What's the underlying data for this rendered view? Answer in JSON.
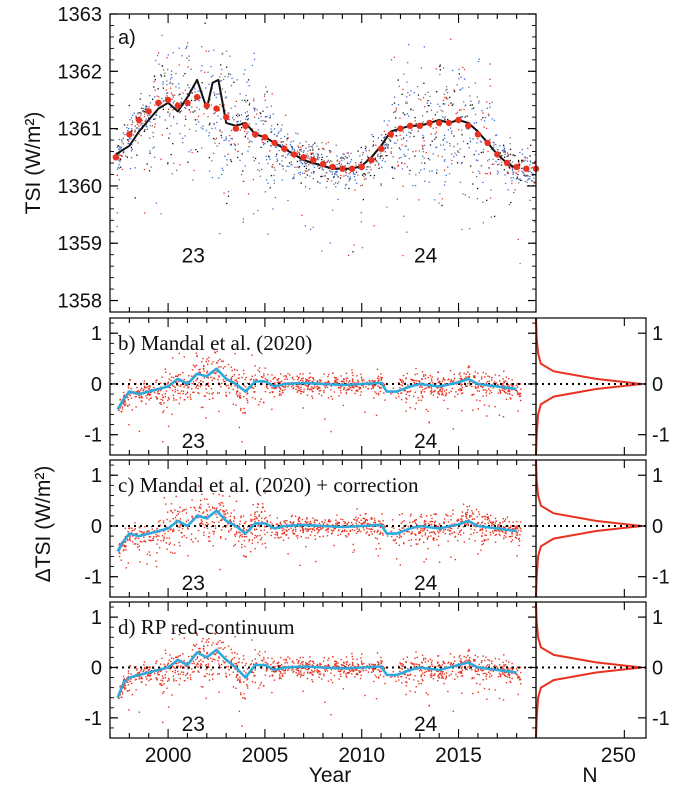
{
  "figure": {
    "xlabel": "Year",
    "hist_xlabel": "N",
    "xticks": [
      2000,
      2005,
      2010,
      2015
    ],
    "hist_ticks": [
      250
    ],
    "xlim": [
      1997,
      2019
    ],
    "colors": {
      "red": "#e8321f",
      "blue": "#3a6fd8",
      "black": "#111111",
      "cyan": "#2fa8dc",
      "gray": "#777777"
    }
  },
  "chart_data": [
    {
      "panel": "a",
      "type": "scatter",
      "label": "a)",
      "ylabel": "TSI (W/m²)",
      "ylim": [
        1357.8,
        1363
      ],
      "yticks": [
        1358,
        1359,
        1360,
        1361,
        1362,
        1363
      ],
      "cycle_labels": [
        {
          "text": "23",
          "x": 2001.3,
          "y": 1358.8
        },
        {
          "text": "24",
          "x": 2013.3,
          "y": 1358.8
        }
      ],
      "series": [
        {
          "color": "black",
          "style": "line",
          "x": [
            1997.3,
            1998.0,
            1998.5,
            1999.0,
            1999.5,
            2000.0,
            2000.5,
            2001.0,
            2001.5,
            2001.8,
            2002.0,
            2002.3,
            2002.6,
            2003.0,
            2003.5,
            2004.0,
            2004.5,
            2005.0,
            2005.5,
            2006.0,
            2006.5,
            2007.0,
            2007.5,
            2008.0,
            2008.5,
            2009.0,
            2009.5,
            2010.0,
            2010.5,
            2011.0,
            2011.5,
            2012.0,
            2012.5,
            2013.0,
            2013.5,
            2014.0,
            2014.5,
            2015.0,
            2015.5,
            2016.0,
            2016.5,
            2017.0,
            2017.5,
            2018.0
          ],
          "y": [
            1360.55,
            1360.7,
            1360.95,
            1361.15,
            1361.35,
            1361.45,
            1361.3,
            1361.55,
            1361.85,
            1361.55,
            1361.35,
            1361.8,
            1361.85,
            1361.1,
            1361.05,
            1361.1,
            1360.9,
            1360.85,
            1360.75,
            1360.65,
            1360.55,
            1360.45,
            1360.4,
            1360.35,
            1360.3,
            1360.3,
            1360.3,
            1360.35,
            1360.5,
            1360.7,
            1360.95,
            1361.0,
            1361.05,
            1361.05,
            1361.1,
            1361.15,
            1361.1,
            1361.15,
            1361.1,
            1360.95,
            1360.75,
            1360.55,
            1360.4,
            1360.3
          ]
        },
        {
          "color": "red",
          "style": "dots",
          "x": [
            1997.3,
            1998.0,
            1998.5,
            1999.0,
            1999.5,
            2000.0,
            2000.5,
            2001.0,
            2001.5,
            2002.0,
            2002.5,
            2003.0,
            2003.5,
            2004.0,
            2004.5,
            2005.0,
            2005.5,
            2006.0,
            2006.5,
            2007.0,
            2007.5,
            2008.0,
            2008.5,
            2009.0,
            2009.5,
            2010.0,
            2010.5,
            2011.0,
            2011.5,
            2012.0,
            2012.5,
            2013.0,
            2013.5,
            2014.0,
            2014.5,
            2015.0,
            2015.5,
            2016.0,
            2016.5,
            2017.0,
            2017.5,
            2018.0,
            2018.5,
            2019.0
          ],
          "y": [
            1360.5,
            1360.9,
            1361.15,
            1361.3,
            1361.45,
            1361.5,
            1361.4,
            1361.45,
            1361.55,
            1361.4,
            1361.35,
            1361.2,
            1361.0,
            1361.05,
            1360.9,
            1360.85,
            1360.75,
            1360.65,
            1360.55,
            1360.5,
            1360.45,
            1360.38,
            1360.33,
            1360.3,
            1360.3,
            1360.33,
            1360.45,
            1360.65,
            1360.9,
            1361.0,
            1361.05,
            1361.05,
            1361.1,
            1361.1,
            1361.1,
            1361.15,
            1361.05,
            1360.9,
            1360.75,
            1360.55,
            1360.4,
            1360.33,
            1360.3,
            1360.3
          ]
        }
      ]
    },
    {
      "panel": "b",
      "type": "scatter",
      "label": "b) Mandal et al. (2020)",
      "ylim": [
        -1.4,
        1.3
      ],
      "yticks": [
        -1,
        0,
        1
      ],
      "cycle_labels": [
        {
          "text": "23",
          "x": 2001.3,
          "y": -1.1
        },
        {
          "text": "24",
          "x": 2013.3,
          "y": -1.1
        }
      ],
      "series": [
        {
          "color": "cyan",
          "style": "line",
          "x": [
            1997.4,
            1997.7,
            1998.0,
            1998.5,
            1999.0,
            1999.5,
            2000.0,
            2000.5,
            2001.0,
            2001.5,
            2002.0,
            2002.5,
            2003.0,
            2003.5,
            2004.0,
            2004.5,
            2005.0,
            2005.5,
            2006.0,
            2007.0,
            2008.0,
            2009.0,
            2010.0,
            2011.0,
            2011.3,
            2011.8,
            2012.5,
            2013.0,
            2014.0,
            2015.0,
            2015.5,
            2016.0,
            2017.0,
            2018.0
          ],
          "y": [
            -0.5,
            -0.3,
            -0.15,
            -0.2,
            -0.15,
            -0.1,
            -0.05,
            0.1,
            0.0,
            0.2,
            0.15,
            0.3,
            0.1,
            0.0,
            -0.15,
            0.05,
            0.05,
            -0.05,
            0.0,
            0.02,
            0.0,
            -0.02,
            0.0,
            0.02,
            -0.15,
            -0.15,
            -0.05,
            0.0,
            -0.05,
            0.03,
            0.1,
            0.0,
            -0.05,
            -0.1
          ]
        }
      ],
      "histogram": {
        "xlabel": "N",
        "y": [
          -1.4,
          -1.0,
          -0.6,
          -0.4,
          -0.25,
          -0.1,
          0.0,
          0.1,
          0.25,
          0.4,
          0.6,
          0.9,
          1.3
        ],
        "n": [
          0,
          2,
          6,
          14,
          50,
          170,
          300,
          170,
          50,
          14,
          6,
          2,
          0
        ]
      }
    },
    {
      "panel": "c",
      "type": "scatter",
      "label": "c) Mandal et al. (2020) + correction",
      "ylim": [
        -1.4,
        1.3
      ],
      "yticks": [
        -1,
        0,
        1
      ],
      "cycle_labels": [
        {
          "text": "23",
          "x": 2001.3,
          "y": -1.1
        },
        {
          "text": "24",
          "x": 2013.3,
          "y": -1.1
        }
      ],
      "series": [
        {
          "color": "cyan",
          "style": "line",
          "x": [
            1997.4,
            1997.7,
            1998.0,
            1998.5,
            1999.0,
            1999.5,
            2000.0,
            2000.5,
            2001.0,
            2001.5,
            2002.0,
            2002.5,
            2003.0,
            2003.5,
            2004.0,
            2004.5,
            2005.0,
            2005.5,
            2006.0,
            2007.0,
            2008.0,
            2009.0,
            2010.0,
            2011.0,
            2011.3,
            2011.8,
            2012.5,
            2013.0,
            2014.0,
            2015.0,
            2015.5,
            2016.0,
            2017.0,
            2018.0
          ],
          "y": [
            -0.5,
            -0.3,
            -0.15,
            -0.2,
            -0.15,
            -0.1,
            -0.05,
            0.1,
            0.0,
            0.2,
            0.15,
            0.3,
            0.1,
            0.0,
            -0.15,
            0.05,
            0.05,
            -0.05,
            0.0,
            0.02,
            0.0,
            -0.02,
            0.0,
            0.02,
            -0.15,
            -0.15,
            -0.05,
            0.0,
            -0.05,
            0.03,
            0.1,
            0.0,
            -0.05,
            -0.1
          ]
        }
      ],
      "histogram": {
        "xlabel": "N",
        "y": [
          -1.4,
          -1.0,
          -0.6,
          -0.4,
          -0.25,
          -0.1,
          0.0,
          0.1,
          0.25,
          0.4,
          0.6,
          0.9,
          1.3
        ],
        "n": [
          0,
          2,
          6,
          14,
          50,
          170,
          300,
          170,
          50,
          14,
          6,
          2,
          0
        ]
      }
    },
    {
      "panel": "d",
      "type": "scatter",
      "label": "d) RP red-continuum",
      "ylim": [
        -1.4,
        1.3
      ],
      "yticks": [
        -1,
        0,
        1
      ],
      "cycle_labels": [
        {
          "text": "23",
          "x": 2001.3,
          "y": -1.1
        },
        {
          "text": "24",
          "x": 2013.3,
          "y": -1.1
        }
      ],
      "series": [
        {
          "color": "cyan",
          "style": "line",
          "x": [
            1997.4,
            1997.7,
            1998.0,
            1998.5,
            1999.0,
            1999.5,
            2000.0,
            2000.5,
            2001.0,
            2001.5,
            2002.0,
            2002.5,
            2003.0,
            2003.5,
            2004.0,
            2004.5,
            2005.0,
            2005.5,
            2006.0,
            2007.0,
            2008.0,
            2009.0,
            2010.0,
            2011.0,
            2011.3,
            2011.8,
            2012.5,
            2013.0,
            2014.0,
            2015.0,
            2015.5,
            2016.0,
            2017.0,
            2018.0
          ],
          "y": [
            -0.6,
            -0.3,
            -0.2,
            -0.15,
            -0.1,
            -0.05,
            0.0,
            0.15,
            0.05,
            0.3,
            0.2,
            0.35,
            0.15,
            0.0,
            -0.2,
            0.05,
            0.05,
            -0.05,
            0.0,
            0.02,
            0.0,
            -0.02,
            0.0,
            0.02,
            -0.15,
            -0.15,
            -0.05,
            0.0,
            -0.05,
            0.05,
            0.1,
            0.0,
            -0.05,
            -0.1
          ]
        }
      ],
      "histogram": {
        "xlabel": "N",
        "y": [
          -1.4,
          -1.0,
          -0.6,
          -0.4,
          -0.25,
          -0.1,
          0.0,
          0.1,
          0.25,
          0.4,
          0.6,
          0.9,
          1.3
        ],
        "n": [
          0,
          2,
          6,
          14,
          50,
          170,
          300,
          170,
          50,
          14,
          6,
          2,
          0
        ]
      }
    }
  ],
  "shared_ylabel": "ΔTSI (W/m²)"
}
